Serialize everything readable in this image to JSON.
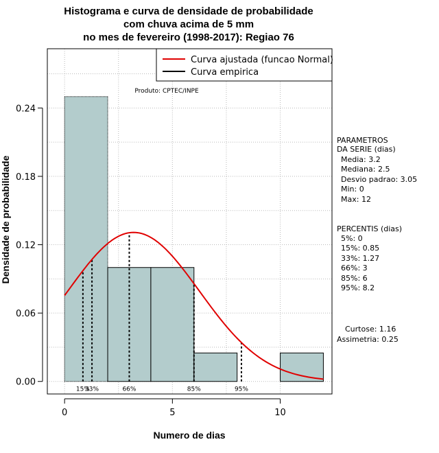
{
  "chart_data": {
    "type": "bar",
    "title": [
      "Histograma e curva de densidade de probabilidade",
      "com chuva acima de 5 mm",
      "no mes de fevereiro (1998-2017): Regiao 76"
    ],
    "xlabel": "Numero de dias",
    "ylabel": "Densidade de probabilidade",
    "xlim": [
      -0.8,
      12.4
    ],
    "ylim": [
      -0.011,
      0.292
    ],
    "xticks": [
      0,
      5,
      10
    ],
    "yticks": [
      0.0,
      0.06,
      0.12,
      0.18,
      0.24
    ],
    "ytick_labels": [
      "0.00",
      "0.06",
      "0.12",
      "0.18",
      "0.24"
    ],
    "grid": true,
    "bins": [
      {
        "start": 0,
        "end": 2,
        "density": 0.25
      },
      {
        "start": 2,
        "end": 4,
        "density": 0.1
      },
      {
        "start": 4,
        "end": 6,
        "density": 0.1
      },
      {
        "start": 6,
        "end": 8,
        "density": 0.025
      },
      {
        "start": 8,
        "end": 10,
        "density": 0.0
      },
      {
        "start": 10,
        "end": 12,
        "density": 0.025
      }
    ],
    "normal_curve": {
      "name": "Curva ajustada (funcao Normal)",
      "mean": 3.2,
      "sd": 3.05,
      "x_range": [
        0,
        12
      ]
    },
    "percentile_lines": [
      {
        "label": "15%",
        "x": 0.85
      },
      {
        "label": "33%",
        "x": 1.27
      },
      {
        "label": "66%",
        "x": 3
      },
      {
        "label": "85%",
        "x": 6
      },
      {
        "label": "95%",
        "x": 8.2
      }
    ],
    "legend": {
      "position": "top-right",
      "entries": [
        {
          "label": "Curva ajustada (funcao Normal)",
          "color": "#e00000"
        },
        {
          "label": "Curva empirica",
          "color": "#000000"
        }
      ]
    },
    "annotation": "Produto: CPTEC/INPE",
    "colors": {
      "bar_fill": "#b3cccc",
      "curve": "#e00000",
      "axis": "#000000"
    }
  },
  "side_panel": {
    "parametros": {
      "header_line1": "PARAMETROS",
      "header_line2": "DA SERIE (dias)",
      "lines": [
        "Media: 3.2",
        "Mediana: 2.5",
        "Desvio padrao: 3.05",
        "Min: 0",
        "Max: 12"
      ]
    },
    "percentis": {
      "header": "PERCENTIS (dias)",
      "lines": [
        "5%: 0",
        "15%: 0.85",
        "33%: 1.27",
        "66%: 3",
        "85%: 6",
        "95%: 8.2"
      ]
    },
    "shape": {
      "curtose": "Curtose: 1.16",
      "assimetria": "Assimetria: 0.25"
    }
  }
}
